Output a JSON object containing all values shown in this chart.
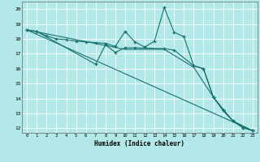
{
  "title": "",
  "xlabel": "Humidex (Indice chaleur)",
  "background_color": "#b2e8e8",
  "line_color": "#1a7070",
  "grid_color": "#ffffff",
  "xlim": [
    -0.5,
    23.5
  ],
  "ylim": [
    11.7,
    20.5
  ],
  "yticks": [
    12,
    13,
    14,
    15,
    16,
    17,
    18,
    19,
    20
  ],
  "xticks": [
    0,
    1,
    2,
    3,
    4,
    5,
    6,
    7,
    8,
    9,
    10,
    11,
    12,
    13,
    14,
    15,
    16,
    17,
    18,
    19,
    20,
    21,
    22,
    23
  ],
  "line1_x": [
    0,
    1,
    2,
    3,
    4,
    5,
    6,
    7,
    8,
    9,
    10,
    11,
    12,
    13,
    14,
    15,
    16,
    17,
    18,
    19,
    20,
    21,
    22,
    23
  ],
  "line1_y": [
    18.6,
    18.5,
    18.2,
    18.0,
    17.95,
    17.85,
    17.8,
    17.75,
    17.7,
    17.5,
    18.5,
    17.8,
    17.45,
    17.85,
    20.1,
    18.45,
    18.15,
    16.2,
    16.0,
    14.1,
    13.2,
    12.5,
    12.05,
    11.85
  ],
  "line2_x": [
    0,
    1,
    7,
    8,
    9,
    10,
    11,
    14,
    15,
    17,
    18,
    19,
    20,
    21,
    22,
    23
  ],
  "line2_y": [
    18.6,
    18.5,
    16.3,
    17.6,
    17.1,
    17.4,
    17.4,
    17.35,
    17.25,
    16.2,
    16.0,
    14.1,
    13.2,
    12.5,
    12.05,
    11.85
  ],
  "line3_x": [
    0,
    23
  ],
  "line3_y": [
    18.6,
    11.85
  ],
  "line4_x": [
    0,
    10,
    14,
    17,
    19,
    21,
    23
  ],
  "line4_y": [
    18.6,
    17.3,
    17.3,
    16.1,
    14.1,
    12.5,
    11.85
  ]
}
